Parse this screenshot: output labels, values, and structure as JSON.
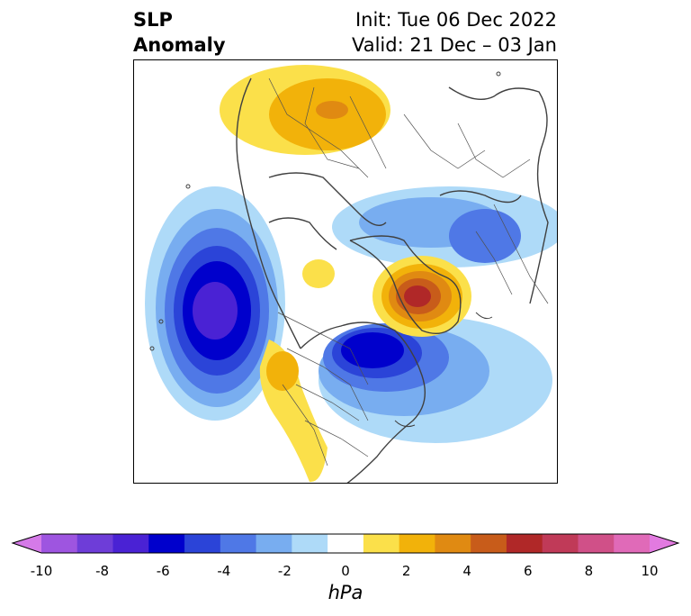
{
  "header": {
    "title_line1": "SLP",
    "title_line2": "Anomaly",
    "init": "Init: Tue 06 Dec 2022",
    "valid": "Valid: 21 Dec – 03 Jan"
  },
  "colorbar": {
    "units": "hPa",
    "ticks": [
      "-10",
      "-8",
      "-6",
      "-4",
      "-2",
      "0",
      "2",
      "4",
      "6",
      "8",
      "10"
    ],
    "colors": [
      "#d57ae8",
      "#9e55e0",
      "#6e3dd8",
      "#4a22d4",
      "#0000cc",
      "#2b44d8",
      "#4f78e6",
      "#78adf0",
      "#aedaf8",
      "#ffffff",
      "#fbe04a",
      "#f2b20a",
      "#e08a12",
      "#c85c1a",
      "#b02828",
      "#c03a58",
      "#d05088",
      "#e06ab8",
      "#e27ae0"
    ]
  },
  "map": {
    "projection": "north-polar-stereographic",
    "features": [
      "coastlines",
      "country-borders",
      "us-state-borders",
      "canada-province-borders"
    ],
    "anomaly_centers": [
      {
        "region": "Northeast Pacific / Gulf of Alaska",
        "sign": "negative",
        "peak_hPa": -7
      },
      {
        "region": "Hudson Bay / Eastern Canada",
        "sign": "negative",
        "peak_hPa": -7
      },
      {
        "region": "Central Siberia",
        "sign": "negative",
        "peak_hPa": -4
      },
      {
        "region": "Greenland",
        "sign": "positive",
        "peak_hPa": 6
      },
      {
        "region": "Northern Europe / Scandinavia",
        "sign": "positive",
        "peak_hPa": 4
      },
      {
        "region": "Western North America",
        "sign": "positive",
        "peak_hPa": 3
      },
      {
        "region": "Arctic Ocean",
        "sign": "positive",
        "peak_hPa": 1
      }
    ]
  }
}
